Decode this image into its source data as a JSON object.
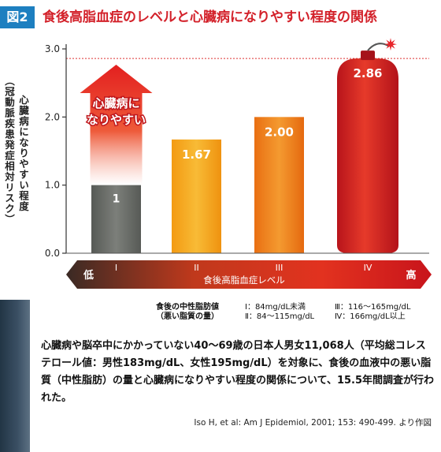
{
  "header": {
    "fig_label": "図2",
    "title": "食後高脂血症のレベルと心臓病になりやすい程度の関係"
  },
  "chart_data": {
    "type": "bar",
    "categories": [
      "I",
      "II",
      "III",
      "IV"
    ],
    "values": [
      1,
      1.67,
      2.0,
      2.86
    ],
    "value_labels": [
      "1",
      "1.67",
      "2.00",
      "2.86"
    ],
    "y_ticks": [
      "0.0",
      "1.0",
      "2.0",
      "3.0"
    ],
    "ylim": [
      0,
      3
    ],
    "ylabel": "心臓病になりやすい程度",
    "ylabel_sub": "（冠動脈疾患発症相対リスク）",
    "xlabel": "食後高脂血症レベル",
    "x_low": "低",
    "x_high": "高",
    "arrow_text": [
      "心臓病に",
      "なりやすい"
    ],
    "reference_line": 2.86,
    "colors": {
      "I": "#6b6e6a",
      "II": "#f5a51a",
      "III": "#ef7d1a",
      "IV": "#d4201f",
      "accent": "#e0262a"
    }
  },
  "legend": {
    "name_1": "食後の中性脂肪値",
    "name_2": "（悪い脂質の量）",
    "items": [
      "Ⅰ：84mg/dL未満",
      "Ⅱ：84～115mg/dL",
      "Ⅲ：116～165mg/dL",
      "Ⅳ：166mg/dL以上"
    ]
  },
  "description": "心臓病や脳卒中にかかっていない40～69歳の日本人男女11,068人（平均総コレステロール値：男性183mg/dL、女性195mg/dL）を対象に、食後の血液中の悪い脂質（中性脂肪）の量と心臓病になりやすい程度の関係について、15.5年間調査が行われた。",
  "citation": "Iso H, et al: Am J Epidemiol, 2001; 153: 490-499. より作図"
}
